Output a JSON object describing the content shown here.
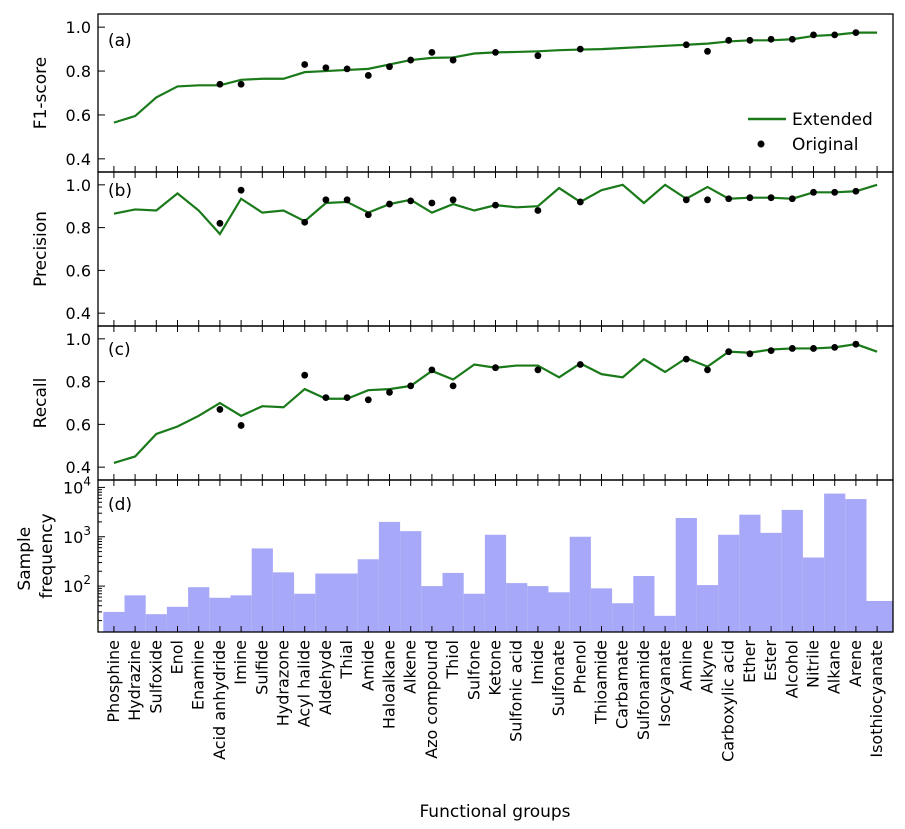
{
  "chart_data": {
    "type": "line",
    "xlabel": "Functional groups",
    "categories": [
      "Phosphine",
      "Hydrazine",
      "Sulfoxide",
      "Enol",
      "Enamine",
      "Acid anhydride",
      "Imine",
      "Sulfide",
      "Hydrazone",
      "Acyl halide",
      "Aldehyde",
      "Thial",
      "Amide",
      "Haloalkane",
      "Alkene",
      "Azo compound",
      "Thiol",
      "Sulfone",
      "Ketone",
      "Sulfonic acid",
      "Imide",
      "Sulfonate",
      "Phenol",
      "Thioamide",
      "Carbamate",
      "Sulfonamide",
      "Isocyanate",
      "Amine",
      "Alkyne",
      "Carboxylic acid",
      "Ether",
      "Ester",
      "Alcohol",
      "Nitrile",
      "Alkane",
      "Arene",
      "Isothiocyanate"
    ],
    "legend": {
      "entries": [
        "Extended",
        "Original"
      ],
      "placement": "lower-right of panel (a)"
    },
    "colors": {
      "extended": "#1a7a1a",
      "original": "#000000",
      "bars": "#a8a8f8"
    },
    "panels": [
      {
        "id": "a",
        "label": "(a)",
        "ylabel": "F1-score",
        "ylim": [
          0.34,
          1.06
        ],
        "yticks": [
          "0.4",
          "0.6",
          "0.8",
          "1.0"
        ],
        "ytick_values": [
          0.4,
          0.6,
          0.8,
          1.0
        ],
        "series": [
          {
            "name": "Extended",
            "kind": "line",
            "values": [
              0.565,
              0.595,
              0.68,
              0.73,
              0.735,
              0.735,
              0.76,
              0.765,
              0.765,
              0.795,
              0.8,
              0.805,
              0.81,
              0.83,
              0.85,
              0.86,
              0.862,
              0.88,
              0.885,
              0.887,
              0.89,
              0.895,
              0.898,
              0.9,
              0.905,
              0.91,
              0.915,
              0.92,
              0.925,
              0.935,
              0.94,
              0.94,
              0.945,
              0.96,
              0.965,
              0.975,
              0.975
            ]
          },
          {
            "name": "Original",
            "kind": "points",
            "values": [
              null,
              null,
              null,
              null,
              null,
              0.74,
              0.74,
              null,
              null,
              0.83,
              0.815,
              0.81,
              0.78,
              0.82,
              0.85,
              0.885,
              0.85,
              null,
              0.885,
              null,
              0.87,
              null,
              0.9,
              null,
              null,
              null,
              null,
              0.92,
              0.89,
              0.94,
              0.94,
              0.945,
              0.945,
              0.965,
              0.965,
              0.975,
              null
            ]
          }
        ]
      },
      {
        "id": "b",
        "label": "(b)",
        "ylabel": "Precision",
        "ylim": [
          0.34,
          1.06
        ],
        "yticks": [
          "0.4",
          "0.6",
          "0.8",
          "1.0"
        ],
        "ytick_values": [
          0.4,
          0.6,
          0.8,
          1.0
        ],
        "series": [
          {
            "name": "Extended",
            "kind": "line",
            "values": [
              0.865,
              0.885,
              0.88,
              0.96,
              0.88,
              0.77,
              0.935,
              0.87,
              0.88,
              0.83,
              0.915,
              0.92,
              0.87,
              0.91,
              0.93,
              0.87,
              0.91,
              0.88,
              0.905,
              0.895,
              0.9,
              0.985,
              0.92,
              0.975,
              1.0,
              0.915,
              1.0,
              0.935,
              0.99,
              0.935,
              0.94,
              0.94,
              0.935,
              0.965,
              0.965,
              0.97,
              1.0
            ]
          },
          {
            "name": "Original",
            "kind": "points",
            "values": [
              null,
              null,
              null,
              null,
              null,
              0.82,
              0.975,
              null,
              null,
              0.825,
              0.93,
              0.93,
              0.86,
              0.91,
              0.925,
              0.915,
              0.93,
              null,
              0.905,
              null,
              0.88,
              null,
              0.92,
              null,
              null,
              null,
              null,
              0.93,
              0.93,
              0.935,
              0.94,
              0.94,
              0.935,
              0.965,
              0.965,
              0.97,
              null
            ]
          }
        ]
      },
      {
        "id": "c",
        "label": "(c)",
        "ylabel": "Recall",
        "ylim": [
          0.34,
          1.06
        ],
        "yticks": [
          "0.4",
          "0.6",
          "0.8",
          "1.0"
        ],
        "ytick_values": [
          0.4,
          0.6,
          0.8,
          1.0
        ],
        "series": [
          {
            "name": "Extended",
            "kind": "line",
            "values": [
              0.42,
              0.45,
              0.555,
              0.59,
              0.64,
              0.7,
              0.64,
              0.685,
              0.68,
              0.765,
              0.72,
              0.72,
              0.76,
              0.765,
              0.78,
              0.85,
              0.81,
              0.88,
              0.865,
              0.875,
              0.875,
              0.82,
              0.885,
              0.835,
              0.82,
              0.905,
              0.845,
              0.91,
              0.87,
              0.94,
              0.935,
              0.95,
              0.955,
              0.955,
              0.96,
              0.975,
              0.94
            ]
          },
          {
            "name": "Original",
            "kind": "points",
            "values": [
              null,
              null,
              null,
              null,
              null,
              0.67,
              0.595,
              null,
              null,
              0.83,
              0.725,
              0.725,
              0.715,
              0.75,
              0.78,
              0.855,
              0.78,
              null,
              0.865,
              null,
              0.855,
              null,
              0.88,
              null,
              null,
              null,
              null,
              0.905,
              0.855,
              0.94,
              0.93,
              0.945,
              0.955,
              0.955,
              0.96,
              0.975,
              null
            ]
          }
        ]
      },
      {
        "id": "d",
        "label": "(d)",
        "ylabel": [
          "Sample",
          "frequency"
        ],
        "scale": "log",
        "ylim_log10": [
          1.07,
          4.15
        ],
        "yticks": [
          {
            "base": "10",
            "exp": "2"
          },
          {
            "base": "10",
            "exp": "3"
          },
          {
            "base": "10",
            "exp": "4"
          }
        ],
        "ytick_values": [
          100,
          1000,
          10000
        ],
        "series": [
          {
            "name": "Sample frequency",
            "kind": "bar",
            "values": [
              30,
              65,
              27,
              38,
              95,
              58,
              65,
              580,
              190,
              70,
              180,
              180,
              350,
              2000,
              1300,
              100,
              185,
              70,
              1100,
              115,
              100,
              75,
              1000,
              90,
              45,
              160,
              25,
              2400,
              105,
              1100,
              2800,
              1200,
              3500,
              380,
              7500,
              5800,
              50
            ]
          }
        ]
      }
    ]
  }
}
